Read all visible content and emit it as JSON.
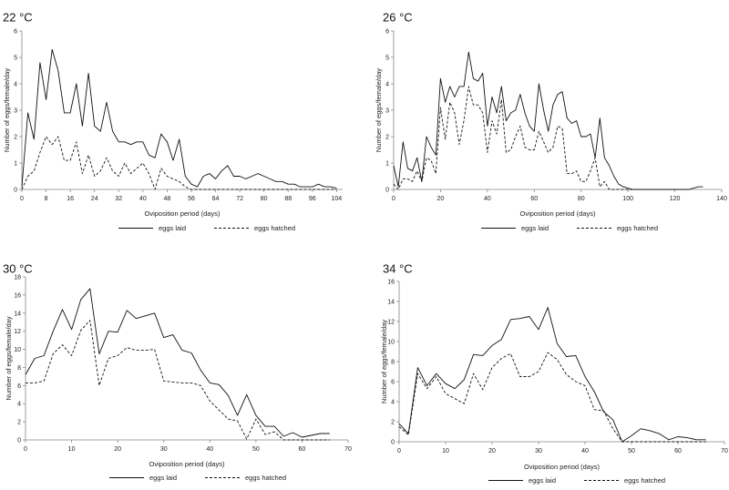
{
  "chart_data": [
    {
      "type": "line",
      "title": "22 °C",
      "xlabel": "Oviposition period (days)",
      "ylabel": "Number of eggs/female/day",
      "xlim": [
        0,
        106
      ],
      "ylim": [
        0,
        6
      ],
      "xticks": [
        0,
        8,
        16,
        24,
        32,
        40,
        48,
        56,
        64,
        72,
        80,
        88,
        96,
        104
      ],
      "yticks": [
        0,
        1,
        2,
        3,
        4,
        5,
        6
      ],
      "legend_position": "bottom",
      "series": [
        {
          "name": "eggs laid",
          "style": "solid",
          "x": [
            0,
            2,
            4,
            6,
            8,
            10,
            12,
            14,
            16,
            18,
            20,
            22,
            24,
            26,
            28,
            30,
            32,
            34,
            36,
            38,
            40,
            42,
            44,
            46,
            48,
            50,
            52,
            54,
            56,
            58,
            60,
            62,
            64,
            66,
            68,
            70,
            72,
            74,
            76,
            78,
            80,
            82,
            84,
            86,
            88,
            90,
            92,
            94,
            96,
            98,
            100,
            102,
            104
          ],
          "values": [
            0.1,
            2.9,
            1.9,
            4.8,
            3.4,
            5.3,
            4.5,
            2.9,
            2.9,
            4.0,
            2.4,
            4.4,
            2.4,
            2.2,
            3.3,
            2.2,
            1.8,
            1.8,
            1.7,
            1.8,
            1.8,
            1.3,
            1.2,
            2.1,
            1.8,
            1.1,
            1.9,
            0.5,
            0.2,
            0.1,
            0.5,
            0.6,
            0.4,
            0.7,
            0.9,
            0.5,
            0.5,
            0.4,
            0.5,
            0.6,
            0.5,
            0.4,
            0.3,
            0.3,
            0.2,
            0.2,
            0.1,
            0.1,
            0.1,
            0.2,
            0.1,
            0.1,
            0.05
          ]
        },
        {
          "name": "eggs hatched",
          "style": "dashed",
          "x": [
            0,
            2,
            4,
            6,
            8,
            10,
            12,
            14,
            16,
            18,
            20,
            22,
            24,
            26,
            28,
            30,
            32,
            34,
            36,
            38,
            40,
            42,
            44,
            46,
            48,
            50,
            52,
            54,
            56,
            58,
            60,
            62,
            64,
            66,
            68,
            70,
            72,
            74,
            76,
            78,
            80,
            82,
            84,
            86,
            88,
            90,
            92,
            94,
            96,
            98,
            100,
            102,
            104
          ],
          "values": [
            0.0,
            0.5,
            0.7,
            1.4,
            2.0,
            1.7,
            2.0,
            1.1,
            1.1,
            1.8,
            0.6,
            1.3,
            0.5,
            0.7,
            1.2,
            0.7,
            0.5,
            1.0,
            0.6,
            0.8,
            1.0,
            0.6,
            0.0,
            0.8,
            0.5,
            0.4,
            0.3,
            0.1,
            0.0,
            0.0,
            0.0,
            0.0,
            0.0,
            0.0,
            0.0,
            0.0,
            0.0,
            0.0,
            0.0,
            0.0,
            0.0,
            0.0,
            0.0,
            0.0,
            0.0,
            0.0,
            0.0,
            0.0,
            0.0,
            0.0,
            0.0,
            0.0,
            0.0
          ]
        }
      ]
    },
    {
      "type": "line",
      "title": "26 °C",
      "xlabel": "Oviposition period (days)",
      "ylabel": "Number of eggs/female/day",
      "xlim": [
        0,
        140
      ],
      "ylim": [
        0,
        6
      ],
      "xticks": [
        0,
        20,
        40,
        60,
        80,
        100,
        120,
        140
      ],
      "yticks": [
        0,
        1,
        2,
        3,
        4,
        5,
        6
      ],
      "legend_position": "bottom",
      "series": [
        {
          "name": "eggs laid",
          "style": "solid",
          "x": [
            0,
            2,
            4,
            6,
            8,
            10,
            12,
            14,
            16,
            18,
            20,
            22,
            24,
            26,
            28,
            30,
            32,
            34,
            36,
            38,
            40,
            42,
            44,
            46,
            48,
            50,
            52,
            54,
            56,
            58,
            60,
            62,
            64,
            66,
            68,
            70,
            72,
            74,
            76,
            78,
            80,
            82,
            84,
            86,
            88,
            90,
            92,
            94,
            96,
            98,
            100,
            102,
            104,
            106,
            108,
            110,
            112,
            114,
            116,
            118,
            120,
            122,
            124,
            126,
            128,
            130,
            132
          ],
          "values": [
            0.9,
            0.1,
            1.8,
            0.8,
            0.7,
            1.2,
            0.3,
            2.0,
            1.6,
            1.3,
            4.2,
            3.3,
            3.9,
            3.5,
            3.9,
            3.9,
            5.2,
            4.2,
            4.1,
            4.4,
            2.4,
            3.5,
            2.9,
            3.9,
            2.6,
            2.9,
            3.0,
            3.6,
            2.9,
            2.4,
            2.2,
            4.0,
            3.0,
            2.2,
            3.2,
            3.6,
            3.7,
            2.7,
            2.5,
            2.6,
            2.0,
            2.0,
            2.1,
            1.2,
            2.7,
            1.2,
            0.9,
            0.5,
            0.2,
            0.1,
            0.05,
            0.0,
            0.0,
            0.0,
            0.0,
            0.0,
            0.0,
            0.0,
            0.0,
            0.0,
            0.0,
            0.0,
            0.0,
            0.0,
            0.05,
            0.1,
            0.1
          ]
        },
        {
          "name": "eggs hatched",
          "style": "dashed",
          "x": [
            0,
            2,
            4,
            6,
            8,
            10,
            12,
            14,
            16,
            18,
            20,
            22,
            24,
            26,
            28,
            30,
            32,
            34,
            36,
            38,
            40,
            42,
            44,
            46,
            48,
            50,
            52,
            54,
            56,
            58,
            60,
            62,
            64,
            66,
            68,
            70,
            72,
            74,
            76,
            78,
            80,
            82,
            84,
            86,
            88,
            90,
            92,
            94,
            96,
            98,
            100,
            102,
            104,
            106,
            108,
            110
          ],
          "values": [
            0.2,
            0.0,
            0.4,
            0.4,
            0.3,
            0.7,
            0.3,
            1.2,
            1.1,
            0.6,
            3.1,
            1.9,
            3.3,
            2.9,
            1.7,
            2.6,
            3.9,
            3.2,
            3.2,
            2.9,
            1.4,
            2.6,
            2.1,
            3.4,
            1.4,
            1.5,
            2.0,
            2.4,
            1.6,
            1.5,
            1.5,
            2.2,
            1.8,
            1.4,
            1.6,
            2.4,
            2.3,
            0.6,
            0.6,
            0.7,
            0.3,
            0.3,
            0.7,
            1.2,
            0.1,
            0.3,
            0.0,
            0.0,
            0.0,
            0.0,
            0.0,
            0.0,
            0.0,
            0.0,
            0.0,
            0.0
          ]
        }
      ]
    },
    {
      "type": "line",
      "title": "30 °C",
      "xlabel": "Oviposition period (days)",
      "ylabel": "Number of eggs/female/day",
      "xlim": [
        0,
        70
      ],
      "ylim": [
        0,
        18
      ],
      "xticks": [
        0,
        10,
        20,
        30,
        40,
        50,
        60,
        70
      ],
      "yticks": [
        0,
        2,
        4,
        6,
        8,
        10,
        12,
        14,
        16,
        18
      ],
      "legend_position": "bottom",
      "series": [
        {
          "name": "eggs laid",
          "style": "solid",
          "x": [
            0,
            2,
            4,
            6,
            8,
            10,
            12,
            14,
            16,
            18,
            20,
            22,
            24,
            26,
            28,
            30,
            32,
            34,
            36,
            38,
            40,
            42,
            44,
            46,
            48,
            50,
            52,
            54,
            56,
            58,
            60,
            62,
            64,
            66
          ],
          "values": [
            7.2,
            9.0,
            9.3,
            12.0,
            14.4,
            12.2,
            15.5,
            16.7,
            9.5,
            12.0,
            11.9,
            14.3,
            13.4,
            13.7,
            14.0,
            11.3,
            11.6,
            9.9,
            9.6,
            7.7,
            6.3,
            6.1,
            4.9,
            2.7,
            5.0,
            2.7,
            1.5,
            1.5,
            0.4,
            0.8,
            0.3,
            0.5,
            0.7,
            0.7
          ]
        },
        {
          "name": "eggs hatched",
          "style": "dashed",
          "x": [
            0,
            2,
            4,
            6,
            8,
            10,
            12,
            14,
            16,
            18,
            20,
            22,
            24,
            26,
            28,
            30,
            32,
            34,
            36,
            38,
            40,
            42,
            44,
            46,
            48,
            50,
            52,
            54,
            56,
            58,
            60,
            62,
            64,
            66
          ],
          "values": [
            6.3,
            6.3,
            6.5,
            9.5,
            10.5,
            9.3,
            12.1,
            13.2,
            6.0,
            9.0,
            9.3,
            10.2,
            9.9,
            9.9,
            10.0,
            6.5,
            6.4,
            6.3,
            6.3,
            6.0,
            4.3,
            3.3,
            2.3,
            2.1,
            0.1,
            2.3,
            0.6,
            0.9,
            0.0,
            0.0,
            0.0,
            0.0,
            0.0,
            0.0
          ]
        }
      ]
    },
    {
      "type": "line",
      "title": "34 °C",
      "xlabel": "Oviposition period (days)",
      "ylabel": "Number of eggs/female/day",
      "xlim": [
        0,
        70
      ],
      "ylim": [
        0,
        16
      ],
      "xticks": [
        0,
        10,
        20,
        30,
        40,
        50,
        60,
        70
      ],
      "yticks": [
        0,
        2,
        4,
        6,
        8,
        10,
        12,
        14,
        16
      ],
      "legend_position": "bottom",
      "series": [
        {
          "name": "eggs laid",
          "style": "solid",
          "x": [
            0,
            2,
            4,
            6,
            8,
            10,
            12,
            14,
            16,
            18,
            20,
            22,
            24,
            26,
            28,
            30,
            32,
            34,
            36,
            38,
            40,
            42,
            44,
            46,
            48,
            50,
            52,
            54,
            56,
            58,
            60,
            62,
            64,
            66
          ],
          "values": [
            1.8,
            0.8,
            7.4,
            5.6,
            6.8,
            5.8,
            5.3,
            6.2,
            8.7,
            8.6,
            9.6,
            10.2,
            12.2,
            12.3,
            12.5,
            11.2,
            13.4,
            9.8,
            8.5,
            8.6,
            6.5,
            5.0,
            3.0,
            2.2,
            0.0,
            0.6,
            1.3,
            1.1,
            0.8,
            0.2,
            0.5,
            0.4,
            0.2,
            0.2
          ]
        },
        {
          "name": "eggs hatched",
          "style": "dashed",
          "x": [
            0,
            2,
            4,
            6,
            8,
            10,
            12,
            14,
            16,
            18,
            20,
            22,
            24,
            26,
            28,
            30,
            32,
            34,
            36,
            38,
            40,
            42,
            44,
            46,
            48,
            50,
            52,
            54,
            56,
            58,
            60,
            62,
            64,
            66
          ],
          "values": [
            1.5,
            0.7,
            6.8,
            5.3,
            6.5,
            4.8,
            4.3,
            3.8,
            6.8,
            5.2,
            7.4,
            8.3,
            8.8,
            6.5,
            6.5,
            7.0,
            8.9,
            8.2,
            6.7,
            6.0,
            5.6,
            3.2,
            3.1,
            1.3,
            0.0,
            0.0,
            0.0,
            0.0,
            0.0,
            0.0,
            0.0,
            0.0,
            0.0,
            0.0
          ]
        }
      ]
    }
  ]
}
